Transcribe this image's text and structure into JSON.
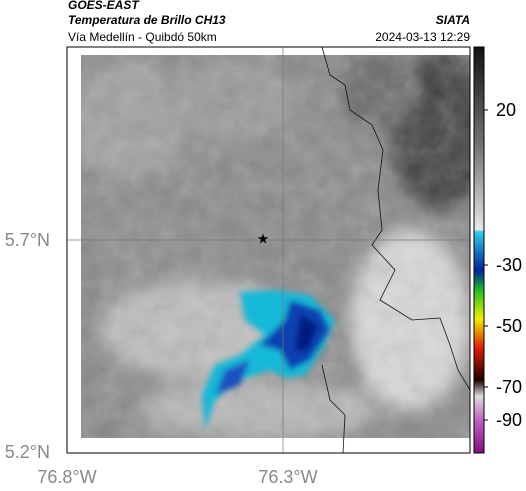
{
  "header": {
    "source": "GOES-EAST",
    "product": "Temperatura de Brillo CH13",
    "route": "Vía Medellín - Quibdó 50km",
    "agency": "SIATA",
    "timestamp": "2024-03-13 12:29"
  },
  "axes": {
    "latitude_labels": [
      "5.7°N",
      "5.2°N"
    ],
    "longitude_labels": [
      "76.8°W",
      "76.3°W"
    ]
  },
  "colorbar": {
    "tick_labels": [
      "20",
      "-30",
      "-50",
      "-70",
      "-90"
    ]
  }
}
